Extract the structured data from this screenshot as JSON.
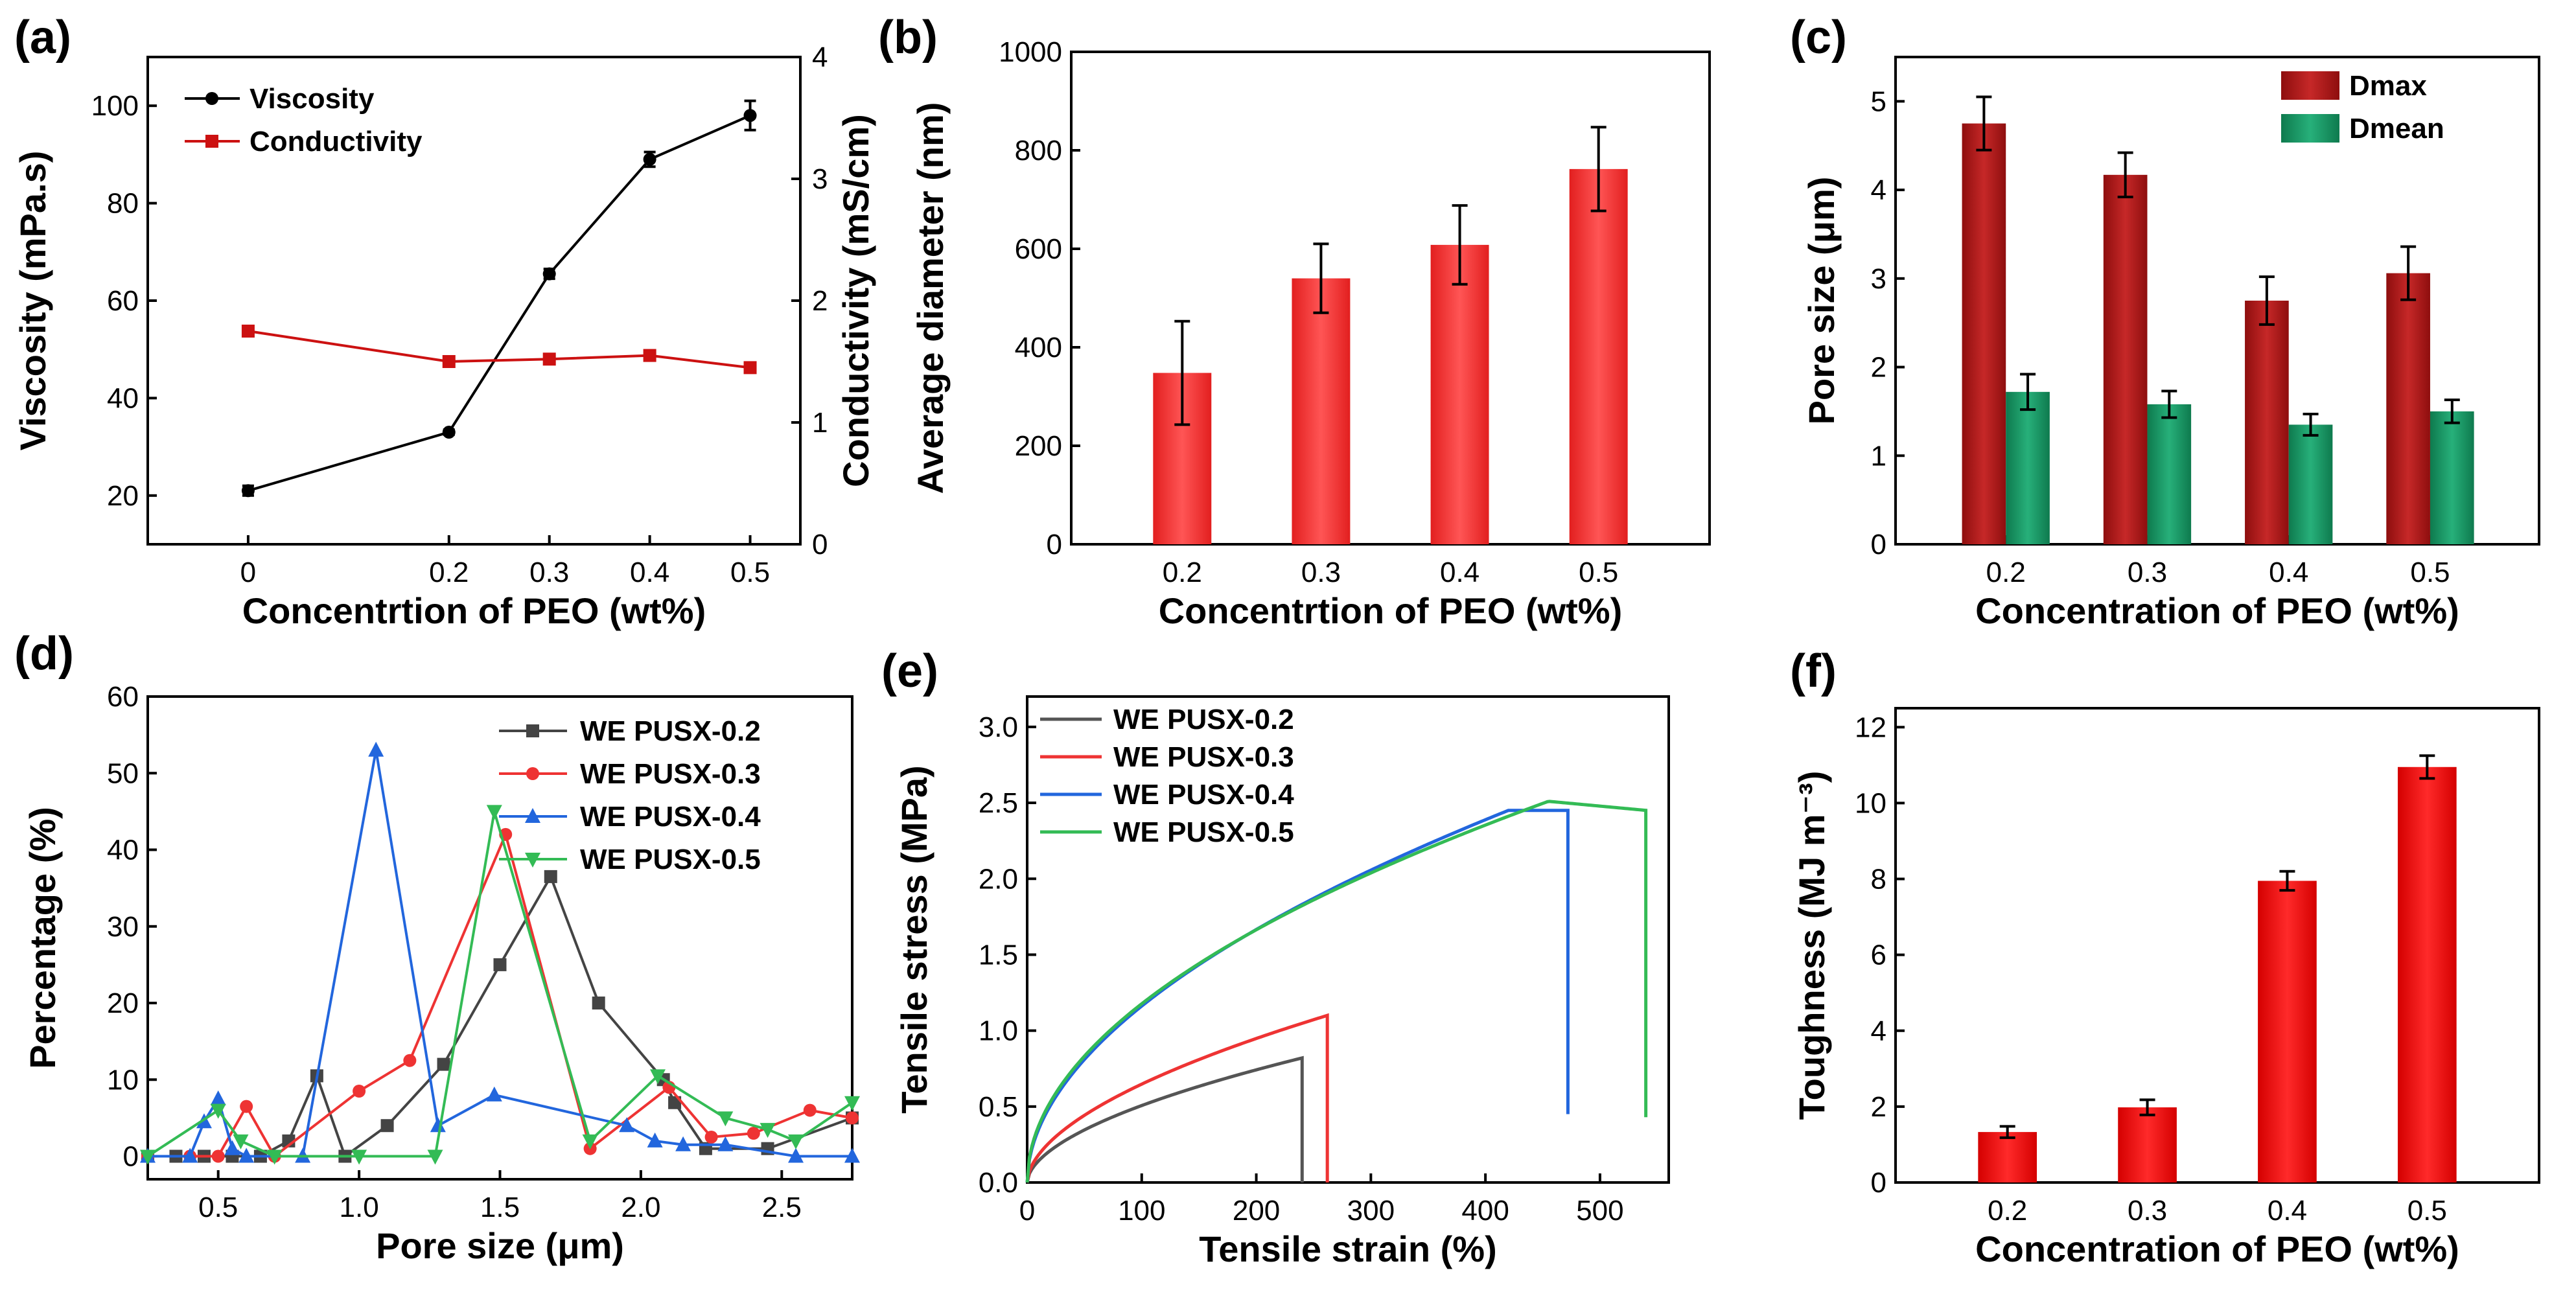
{
  "chart_data": [
    {
      "panel": "(a)",
      "type": "line",
      "xlabel": "Concentrtion of PEO (wt%)",
      "ylabel": "Viscosity (mPa.s)",
      "y2label": "Conductivity (mS/cm)",
      "x": [
        0,
        0.2,
        0.3,
        0.4,
        0.5
      ],
      "xticks": [
        "0",
        "0.2",
        "0.3",
        "0.4",
        "0.5"
      ],
      "ylim": [
        10,
        110
      ],
      "yticks": [
        20,
        40,
        60,
        80,
        100
      ],
      "y2lim": [
        0,
        4
      ],
      "y2ticks": [
        0,
        1,
        2,
        3,
        4
      ],
      "series": [
        {
          "name": "Viscosity",
          "axis": "left",
          "color": "#000000",
          "marker": "circle",
          "values": [
            21,
            33,
            65.5,
            89,
            98
          ],
          "errors": [
            1,
            0.5,
            1,
            1.5,
            3
          ]
        },
        {
          "name": "Conductivity",
          "axis": "right",
          "color": "#cc1111",
          "marker": "square",
          "values": [
            1.75,
            1.5,
            1.52,
            1.55,
            1.45
          ]
        }
      ],
      "legend": "top-left"
    },
    {
      "panel": "(b)",
      "type": "bar",
      "xlabel": "Concentrtion of PEO (wt%)",
      "ylabel": "Average diameter (nm)",
      "categories": [
        "0.2",
        "0.3",
        "0.4",
        "0.5"
      ],
      "values": [
        348,
        540,
        608,
        762
      ],
      "errors": [
        105,
        70,
        80,
        85
      ],
      "ylim": [
        0,
        1000
      ],
      "yticks": [
        0,
        200,
        400,
        600,
        800,
        1000
      ],
      "color": "#ee3a3a"
    },
    {
      "panel": "(c)",
      "type": "bar",
      "xlabel": "Concentration of PEO (wt%)",
      "ylabel": "Pore size (μm)",
      "categories": [
        "0.2",
        "0.3",
        "0.4",
        "0.5"
      ],
      "series": [
        {
          "name": "Dmax",
          "color": "#b31b1b",
          "values": [
            4.75,
            4.17,
            2.75,
            3.06
          ],
          "errors": [
            0.3,
            0.25,
            0.27,
            0.3
          ]
        },
        {
          "name": "Dmean",
          "color": "#1e9a6a",
          "values": [
            1.72,
            1.58,
            1.35,
            1.5
          ],
          "errors": [
            0.2,
            0.15,
            0.12,
            0.13
          ]
        }
      ],
      "ylim": [
        0,
        5.5
      ],
      "yticks": [
        0,
        1,
        2,
        3,
        4,
        5
      ],
      "legend": "top-right"
    },
    {
      "panel": "(d)",
      "type": "line",
      "xlabel": "Pore size (μm)",
      "ylabel": "Percentage (%)",
      "xlim": [
        0.25,
        2.75
      ],
      "xticks": [
        0.5,
        1.0,
        1.5,
        2.0,
        2.5
      ],
      "xticklabels": [
        "0.5",
        "1.0",
        "1.5",
        "2.0",
        "2.5"
      ],
      "ylim": [
        -3,
        60
      ],
      "yticks": [
        0,
        10,
        20,
        30,
        40,
        50,
        60
      ],
      "series": [
        {
          "name": "WE PUSX-0.2",
          "color": "#444444",
          "marker": "square",
          "x": [
            0.25,
            0.35,
            0.45,
            0.55,
            0.65,
            0.75,
            0.85,
            0.95,
            1.1,
            1.3,
            1.5,
            1.68,
            1.85,
            2.08,
            2.12,
            2.23,
            2.45,
            2.75
          ],
          "y": [
            0,
            0,
            0,
            0,
            0,
            2,
            10.5,
            0,
            4,
            12,
            25,
            36.5,
            20,
            10,
            7,
            1,
            1,
            5
          ]
        },
        {
          "name": "WE PUSX-0.3",
          "color": "#ee3333",
          "marker": "circle",
          "x": [
            0.25,
            0.4,
            0.5,
            0.6,
            0.7,
            1.0,
            1.18,
            1.52,
            1.82,
            2.1,
            2.25,
            2.4,
            2.6,
            2.75
          ],
          "y": [
            0,
            0,
            0,
            6.5,
            0,
            8.5,
            12.5,
            42,
            1,
            9,
            2.5,
            3,
            6,
            5
          ]
        },
        {
          "name": "WE PUSX-0.4",
          "color": "#2266dd",
          "marker": "triangle-up",
          "x": [
            0.25,
            0.4,
            0.45,
            0.5,
            0.55,
            0.6,
            0.8,
            1.06,
            1.28,
            1.48,
            1.95,
            2.05,
            2.15,
            2.3,
            2.55,
            2.75
          ],
          "y": [
            0,
            0,
            4.5,
            7.5,
            1,
            0,
            0,
            53,
            4,
            8,
            4,
            2,
            1.5,
            1.5,
            0,
            0
          ]
        },
        {
          "name": "WE PUSX-0.5",
          "color": "#33bb55",
          "marker": "triangle-down",
          "x": [
            0.25,
            0.5,
            0.58,
            0.7,
            1.0,
            1.27,
            1.48,
            1.82,
            2.06,
            2.3,
            2.45,
            2.55,
            2.75
          ],
          "y": [
            0,
            6,
            2,
            0,
            0,
            0,
            45,
            2,
            10.5,
            5,
            3.5,
            2,
            7
          ]
        }
      ],
      "legend": "top-right"
    },
    {
      "panel": "(e)",
      "type": "line",
      "xlabel": "Tensile strain (%)",
      "ylabel": "Tensile stress (MPa)",
      "xlim": [
        0,
        560
      ],
      "xticks": [
        0,
        100,
        200,
        300,
        400,
        500
      ],
      "ylim": [
        0,
        3.2
      ],
      "yticks": [
        0.0,
        0.5,
        1.0,
        1.5,
        2.0,
        2.5,
        3.0
      ],
      "yticklabels": [
        "0.0",
        "0.5",
        "1.0",
        "1.5",
        "2.0",
        "2.5",
        "3.0"
      ],
      "series": [
        {
          "name": "WE PUSX-0.2",
          "color": "#555555",
          "break_strain": 240,
          "end_stress": 0.82
        },
        {
          "name": "WE PUSX-0.3",
          "color": "#ee3333",
          "break_strain": 262,
          "end_stress": 1.1
        },
        {
          "name": "WE PUSX-0.4",
          "color": "#2266dd",
          "break_strain": 472,
          "end_stress": 2.45,
          "drop_to": 0.45
        },
        {
          "name": "WE PUSX-0.5",
          "color": "#33bb55",
          "break_strain": 540,
          "peak_stress": 2.51,
          "end_stress": 2.45,
          "drop_to": 0.43
        }
      ],
      "legend": "top-left"
    },
    {
      "panel": "(f)",
      "type": "bar",
      "xlabel": "Concentration of PEO (wt%)",
      "ylabel": "Toughness (MJ m⁻³)",
      "categories": [
        "0.2",
        "0.3",
        "0.4",
        "0.5"
      ],
      "values": [
        1.33,
        1.98,
        7.95,
        10.95
      ],
      "errors": [
        0.15,
        0.2,
        0.25,
        0.3
      ],
      "ylim": [
        0,
        12.5
      ],
      "yticks": [
        0,
        2,
        4,
        6,
        8,
        10,
        12
      ],
      "color": "#ee1111"
    }
  ]
}
